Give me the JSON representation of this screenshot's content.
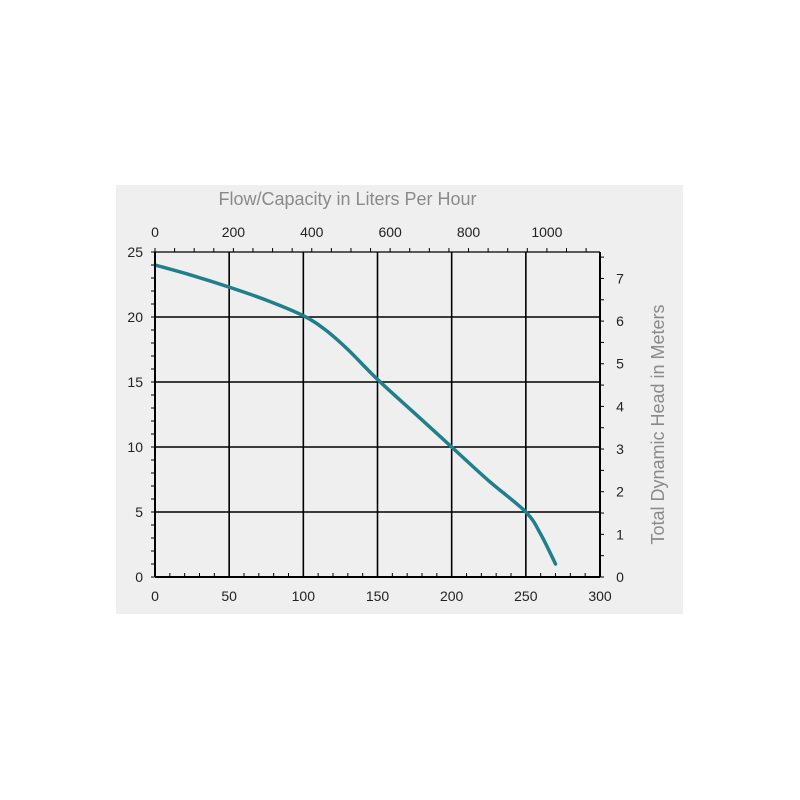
{
  "chart_data": {
    "type": "line",
    "title": "",
    "top_axis": {
      "label": "Flow/Capacity in Liters Per Hour",
      "ticks": [
        0,
        200,
        400,
        600,
        800,
        1000
      ],
      "per_x_unit": 3.785
    },
    "bottom_axis": {
      "label": "",
      "ticks": [
        0,
        50,
        100,
        150,
        200,
        250,
        300
      ],
      "xlim": [
        0,
        300
      ]
    },
    "left_axis": {
      "label": "",
      "ticks": [
        0,
        5,
        10,
        15,
        20,
        25
      ],
      "ylim": [
        0,
        25
      ]
    },
    "right_axis": {
      "label": "Total Dynamic Head in Meters",
      "ticks": [
        0,
        1,
        2,
        3,
        4,
        5,
        6,
        7
      ],
      "per_y_unit": 0.3048
    },
    "grid": true,
    "colors": {
      "line": "#1f7f8c",
      "grid": "#000000",
      "panel": "#efefef"
    },
    "series": [
      {
        "name": "",
        "x": [
          0,
          25,
          50,
          75,
          100,
          115,
          130,
          150,
          175,
          200,
          225,
          250,
          260,
          270
        ],
        "y": [
          24,
          23.2,
          22.3,
          21.3,
          20.1,
          19,
          17.5,
          15.2,
          12.6,
          10,
          7.4,
          5,
          3.3,
          1
        ]
      }
    ]
  }
}
